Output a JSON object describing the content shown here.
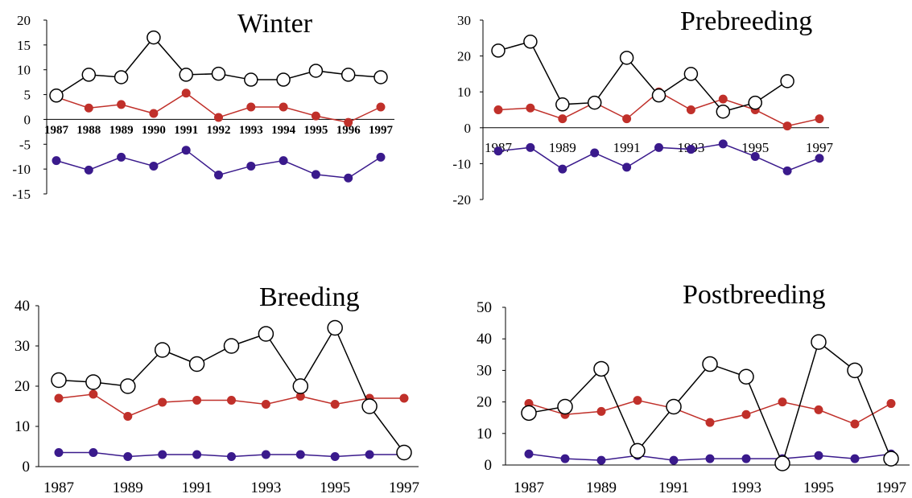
{
  "chart_data": [
    {
      "type": "line",
      "title": "Winter",
      "categories": [
        "1987",
        "1988",
        "1989",
        "1990",
        "1991",
        "1992",
        "1993",
        "1994",
        "1995",
        "1996",
        "1997"
      ],
      "x_tick_labels": [
        "1987",
        "1988",
        "1989",
        "1990",
        "1991",
        "1992",
        "1993",
        "1994",
        "1995",
        "1996",
        "1997"
      ],
      "y_tick_labels": [
        "20",
        "15",
        "10",
        "5",
        "0",
        "-5",
        "-10",
        "-15"
      ],
      "ylim": [
        -15,
        20
      ],
      "series": [
        {
          "color": "#000000",
          "marker": "open-circle",
          "values": [
            4.8,
            9.0,
            8.5,
            16.5,
            9.0,
            9.2,
            8.0,
            8.0,
            9.8,
            9.0,
            8.5
          ]
        },
        {
          "color": "#c0302a",
          "marker": "filled-circle",
          "values": [
            4.5,
            2.3,
            3.0,
            1.2,
            5.3,
            0.4,
            2.5,
            2.5,
            0.7,
            -0.6,
            2.5
          ]
        },
        {
          "color": "#3a1a8c",
          "marker": "filled-circle",
          "values": [
            -8.3,
            -10.2,
            -7.6,
            -9.4,
            -6.2,
            -11.2,
            -9.4,
            -8.3,
            -11.1,
            -11.8,
            -7.6
          ]
        }
      ]
    },
    {
      "type": "line",
      "title": "Prebreeding",
      "categories": [
        "1987",
        "1988",
        "1989",
        "1990",
        "1991",
        "1992",
        "1993",
        "1994",
        "1995",
        "1996",
        "1997"
      ],
      "x_tick_labels": [
        "1987",
        "1989",
        "1991",
        "1993",
        "1995",
        "1997"
      ],
      "y_tick_labels": [
        "30",
        "20",
        "10",
        "0",
        "-10",
        "-20"
      ],
      "ylim": [
        -20,
        30
      ],
      "series": [
        {
          "color": "#000000",
          "marker": "open-circle",
          "values": [
            21.5,
            24.0,
            6.5,
            7.0,
            19.5,
            9.0,
            15.0,
            4.5,
            7.0,
            13.0,
            null
          ]
        },
        {
          "color": "#c0302a",
          "marker": "filled-circle",
          "values": [
            5.0,
            5.5,
            2.5,
            7.0,
            2.5,
            10.0,
            5.0,
            8.0,
            5.0,
            0.5,
            2.5
          ]
        },
        {
          "color": "#3a1a8c",
          "marker": "filled-circle",
          "values": [
            -6.5,
            -5.5,
            -11.5,
            -7.0,
            -11.0,
            -5.5,
            -6.0,
            -4.5,
            -8.0,
            -12.0,
            -8.5
          ]
        }
      ]
    },
    {
      "type": "line",
      "title": "Breeding",
      "categories": [
        "1987",
        "1988",
        "1989",
        "1990",
        "1991",
        "1992",
        "1993",
        "1994",
        "1995",
        "1996",
        "1997"
      ],
      "x_tick_labels": [
        "1987",
        "1989",
        "1991",
        "1993",
        "1995",
        "1997"
      ],
      "y_tick_labels": [
        "40",
        "30",
        "20",
        "10",
        "0"
      ],
      "ylim": [
        0,
        40
      ],
      "series": [
        {
          "color": "#000000",
          "marker": "open-circle",
          "values": [
            21.5,
            21.0,
            20.0,
            29.0,
            25.5,
            30.0,
            33.0,
            20.0,
            34.5,
            15.0,
            3.5
          ]
        },
        {
          "color": "#c0302a",
          "marker": "filled-circle",
          "values": [
            17.0,
            18.0,
            12.5,
            16.0,
            16.5,
            16.5,
            15.5,
            17.5,
            15.5,
            17.0,
            17.0
          ]
        },
        {
          "color": "#3a1a8c",
          "marker": "filled-circle",
          "values": [
            3.5,
            3.5,
            2.5,
            3.0,
            3.0,
            2.5,
            3.0,
            3.0,
            2.5,
            3.0,
            3.0
          ]
        }
      ]
    },
    {
      "type": "line",
      "title": "Postbreeding",
      "categories": [
        "1987",
        "1988",
        "1989",
        "1990",
        "1991",
        "1992",
        "1993",
        "1994",
        "1995",
        "1996",
        "1997"
      ],
      "x_tick_labels": [
        "1987",
        "1989",
        "1991",
        "1993",
        "1995",
        "1997"
      ],
      "y_tick_labels": [
        "50",
        "40",
        "30",
        "20",
        "10",
        "0"
      ],
      "ylim": [
        0,
        50
      ],
      "series": [
        {
          "color": "#000000",
          "marker": "open-circle",
          "values": [
            16.5,
            18.5,
            30.5,
            4.5,
            18.5,
            32.0,
            28.0,
            0.5,
            39.0,
            30.0,
            2.0
          ]
        },
        {
          "color": "#c0302a",
          "marker": "filled-circle",
          "values": [
            19.5,
            16.0,
            17.0,
            20.5,
            18.0,
            13.5,
            16.0,
            20.0,
            17.5,
            13.0,
            19.5
          ]
        },
        {
          "color": "#3a1a8c",
          "marker": "filled-circle",
          "values": [
            3.5,
            2.0,
            1.5,
            3.0,
            1.5,
            2.0,
            2.0,
            2.0,
            3.0,
            2.0,
            3.5
          ]
        }
      ]
    }
  ]
}
